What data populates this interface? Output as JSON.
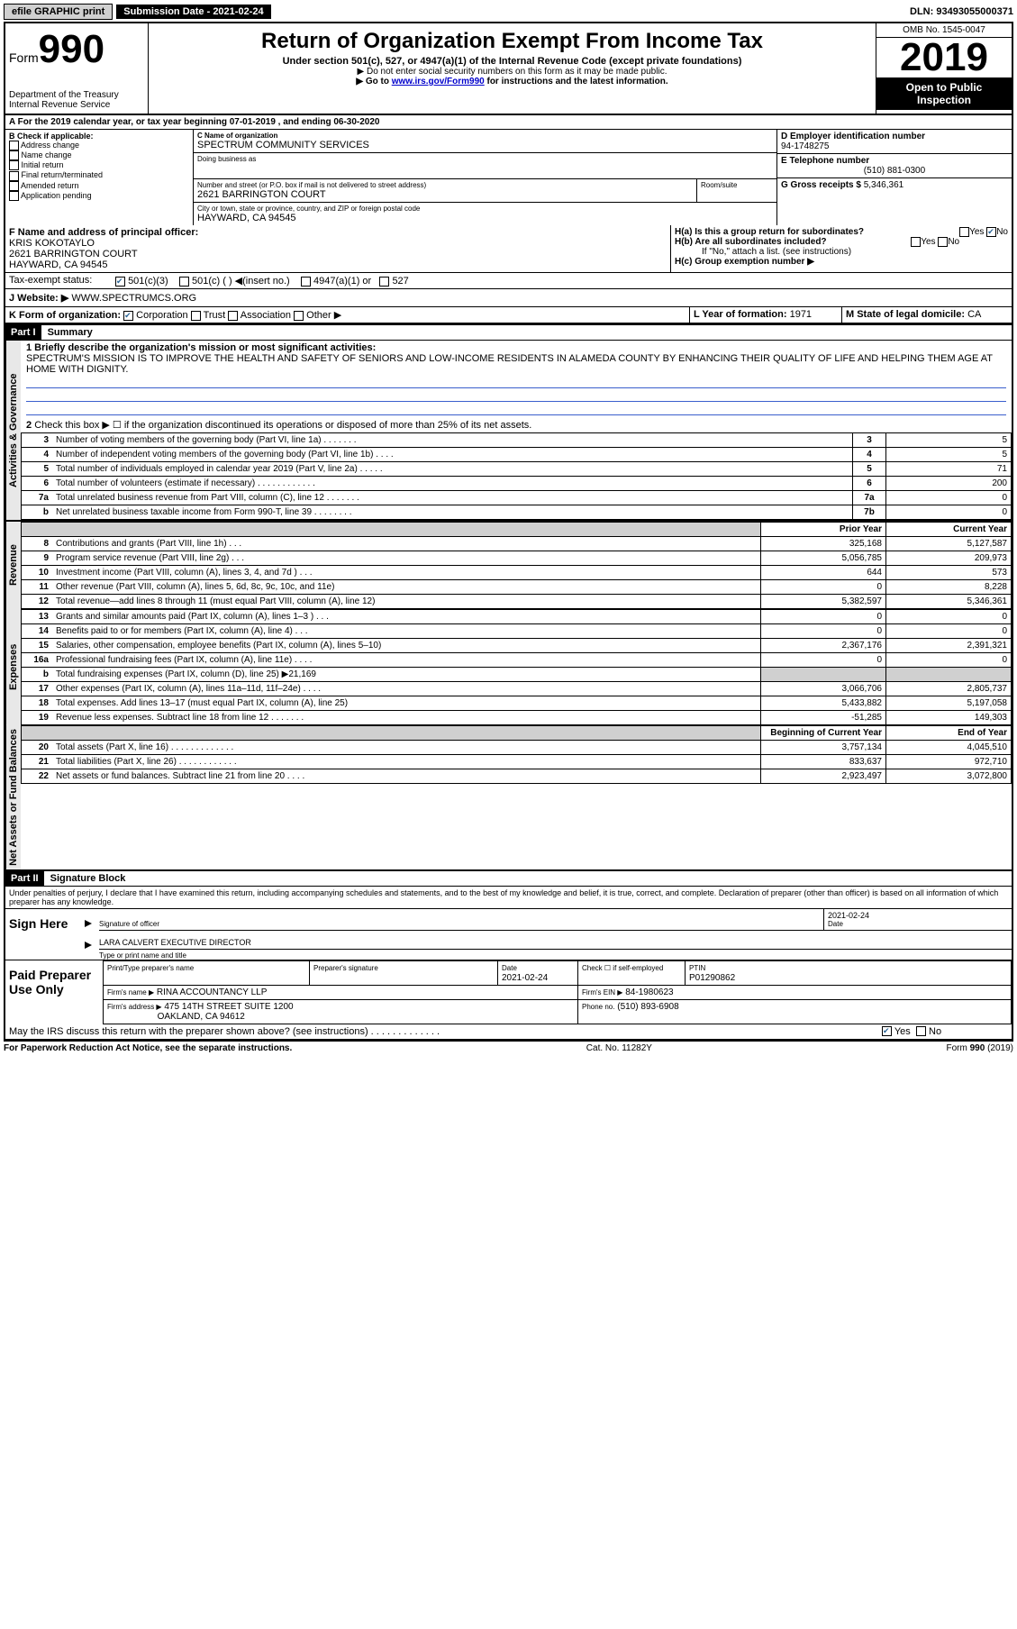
{
  "topbar": {
    "efile": "efile GRAPHIC print",
    "sub_label": "Submission Date - 2021-02-24",
    "dln": "DLN: 93493055000371"
  },
  "header": {
    "form_prefix": "Form",
    "form_num": "990",
    "dept": "Department of the Treasury\nInternal Revenue Service",
    "title": "Return of Organization Exempt From Income Tax",
    "subtitle": "Under section 501(c), 527, or 4947(a)(1) of the Internal Revenue Code (except private foundations)",
    "line1": "▶ Do not enter social security numbers on this form as it may be made public.",
    "line2_pre": "▶ Go to ",
    "line2_link": "www.irs.gov/Form990",
    "line2_post": " for instructions and the latest information.",
    "omb": "OMB No. 1545-0047",
    "year": "2019",
    "open": "Open to Public Inspection"
  },
  "a_line": "For the 2019 calendar year, or tax year beginning 07-01-2019    , and ending 06-30-2020",
  "b_checks": {
    "label": "B Check if applicable:",
    "items": [
      "Address change",
      "Name change",
      "Initial return",
      "Final return/terminated",
      "Amended return",
      "Application pending"
    ]
  },
  "c": {
    "name_label": "C Name of organization",
    "name": "SPECTRUM COMMUNITY SERVICES",
    "dba_label": "Doing business as",
    "addr_label": "Number and street (or P.O. box if mail is not delivered to street address)",
    "addr": "2621 BARRINGTON COURT",
    "room_label": "Room/suite",
    "city_label": "City or town, state or province, country, and ZIP or foreign postal code",
    "city": "HAYWARD, CA  94545"
  },
  "d": {
    "label": "D Employer identification number",
    "value": "94-1748275"
  },
  "e": {
    "label": "E Telephone number",
    "value": "(510) 881-0300"
  },
  "g": {
    "label": "G Gross receipts $",
    "value": "5,346,361"
  },
  "f": {
    "label": "F  Name and address of principal officer:",
    "name": "KRIS KOKOTAYLO",
    "addr": "2621 BARRINGTON COURT",
    "city": "HAYWARD, CA  94545"
  },
  "h": {
    "a": "H(a)  Is this a group return for subordinates?",
    "b": "H(b)  Are all subordinates included?",
    "note": "If \"No,\" attach a list. (see instructions)",
    "c": "H(c)  Group exemption number ▶"
  },
  "i": {
    "label": "Tax-exempt status:",
    "c3": "501(c)(3)",
    "cx": "501(c) (  ) ◀(insert no.)",
    "a1": "4947(a)(1) or",
    "s527": "527"
  },
  "j": {
    "label": "J   Website: ▶",
    "value": "WWW.SPECTRUMCS.ORG"
  },
  "k": {
    "label": "K Form of organization:",
    "corp": "Corporation",
    "trust": "Trust",
    "assoc": "Association",
    "other": "Other ▶"
  },
  "l": {
    "label": "L Year of formation:",
    "value": "1971"
  },
  "m": {
    "label": "M State of legal domicile:",
    "value": "CA"
  },
  "part1": {
    "tag": "Part I",
    "title": "Summary",
    "q1_label": "1   Briefly describe the organization's mission or most significant activities:",
    "mission": "SPECTRUM'S MISSION IS TO IMPROVE THE HEALTH AND SAFETY OF SENIORS AND LOW-INCOME RESIDENTS IN ALAMEDA COUNTY BY ENHANCING THEIR QUALITY OF LIFE AND HELPING THEM AGE AT HOME WITH DIGNITY.",
    "q2": "Check this box ▶ ☐ if the organization discontinued its operations or disposed of more than 25% of its net assets.",
    "section_labels": {
      "ag": "Activities & Governance",
      "rev": "Revenue",
      "exp": "Expenses",
      "na": "Net Assets or Fund Balances"
    },
    "col_py": "Prior Year",
    "col_cy": "Current Year",
    "col_bcy": "Beginning of Current Year",
    "col_eoy": "End of Year",
    "rows_ag": [
      {
        "n": "3",
        "t": "Number of voting members of the governing body (Part VI, line 1a)   .    .    .    .    .    .    .",
        "box": "3",
        "v": "5"
      },
      {
        "n": "4",
        "t": "Number of independent voting members of the governing body (Part VI, line 1b)   .    .    .    .",
        "box": "4",
        "v": "5"
      },
      {
        "n": "5",
        "t": "Total number of individuals employed in calendar year 2019 (Part V, line 2a)   .    .    .    .    .",
        "box": "5",
        "v": "71"
      },
      {
        "n": "6",
        "t": "Total number of volunteers (estimate if necessary)    .    .    .    .    .    .    .    .    .    .    .    .",
        "box": "6",
        "v": "200"
      },
      {
        "n": "7a",
        "t": "Total unrelated business revenue from Part VIII, column (C), line 12   .    .    .    .    .    .    .",
        "box": "7a",
        "v": "0"
      },
      {
        "n": "b",
        "t": "Net unrelated business taxable income from Form 990-T, line 39    .    .    .    .    .    .    .    .",
        "box": "7b",
        "v": "0"
      }
    ],
    "rows_rev": [
      {
        "n": "8",
        "t": "Contributions and grants (Part VIII, line 1h)    .    .    .",
        "py": "325,168",
        "cy": "5,127,587"
      },
      {
        "n": "9",
        "t": "Program service revenue (Part VIII, line 2g)    .    .    .",
        "py": "5,056,785",
        "cy": "209,973"
      },
      {
        "n": "10",
        "t": "Investment income (Part VIII, column (A), lines 3, 4, and 7d )    .    .    .",
        "py": "644",
        "cy": "573"
      },
      {
        "n": "11",
        "t": "Other revenue (Part VIII, column (A), lines 5, 6d, 8c, 9c, 10c, and 11e)",
        "py": "0",
        "cy": "8,228"
      },
      {
        "n": "12",
        "t": "Total revenue—add lines 8 through 11 (must equal Part VIII, column (A), line 12)",
        "py": "5,382,597",
        "cy": "5,346,361"
      }
    ],
    "rows_exp": [
      {
        "n": "13",
        "t": "Grants and similar amounts paid (Part IX, column (A), lines 1–3 )   .    .    .",
        "py": "0",
        "cy": "0"
      },
      {
        "n": "14",
        "t": "Benefits paid to or for members (Part IX, column (A), line 4)   .    .    .",
        "py": "0",
        "cy": "0"
      },
      {
        "n": "15",
        "t": "Salaries, other compensation, employee benefits (Part IX, column (A), lines 5–10)",
        "py": "2,367,176",
        "cy": "2,391,321"
      },
      {
        "n": "16a",
        "t": "Professional fundraising fees (Part IX, column (A), line 11e)   .    .    .    .",
        "py": "0",
        "cy": "0"
      },
      {
        "n": "b",
        "t": "Total fundraising expenses (Part IX, column (D), line 25) ▶21,169",
        "py": "",
        "cy": "",
        "shaded": true
      },
      {
        "n": "17",
        "t": "Other expenses (Part IX, column (A), lines 11a–11d, 11f–24e)    .    .    .    .",
        "py": "3,066,706",
        "cy": "2,805,737"
      },
      {
        "n": "18",
        "t": "Total expenses. Add lines 13–17 (must equal Part IX, column (A), line 25)",
        "py": "5,433,882",
        "cy": "5,197,058"
      },
      {
        "n": "19",
        "t": "Revenue less expenses. Subtract line 18 from line 12   .    .    .    .    .    .    .",
        "py": "-51,285",
        "cy": "149,303"
      }
    ],
    "rows_na": [
      {
        "n": "20",
        "t": "Total assets (Part X, line 16)   .    .    .    .    .    .    .    .    .    .    .    .    .",
        "py": "3,757,134",
        "cy": "4,045,510"
      },
      {
        "n": "21",
        "t": "Total liabilities (Part X, line 26)   .    .    .    .    .    .    .    .    .    .    .    .",
        "py": "833,637",
        "cy": "972,710"
      },
      {
        "n": "22",
        "t": "Net assets or fund balances. Subtract line 21 from line 20    .    .    .    .",
        "py": "2,923,497",
        "cy": "3,072,800"
      }
    ]
  },
  "part2": {
    "tag": "Part II",
    "title": "Signature Block",
    "decl": "Under penalties of perjury, I declare that I have examined this return, including accompanying schedules and statements, and to the best of my knowledge and belief, it is true, correct, and complete. Declaration of preparer (other than officer) is based on all information of which preparer has any knowledge.",
    "sign_here": "Sign Here",
    "sig_officer": "Signature of officer",
    "sig_date": "2021-02-24",
    "date_label": "Date",
    "officer_name": "LARA CALVERT  EXECUTIVE DIRECTOR",
    "type_name": "Type or print name and title",
    "paid": "Paid Preparer Use Only",
    "prep_name_label": "Print/Type preparer's name",
    "prep_sig_label": "Preparer's signature",
    "prep_date": "2021-02-24",
    "check_self": "Check ☐ if self-employed",
    "ptin_label": "PTIN",
    "ptin": "P01290862",
    "firm_name_label": "Firm's name    ▶",
    "firm_name": "RINA ACCOUNTANCY LLP",
    "firm_ein_label": "Firm's EIN ▶",
    "firm_ein": "84-1980623",
    "firm_addr_label": "Firm's address ▶",
    "firm_addr": "475 14TH STREET SUITE 1200",
    "firm_city": "OAKLAND, CA  94612",
    "phone_label": "Phone no.",
    "phone": "(510) 893-6908",
    "discuss": "May the IRS discuss this return with the preparer shown above? (see instructions)    .    .    .    .    .    .    .    .    .    .    .    .    .",
    "yes": "Yes",
    "no": "No"
  },
  "footer": {
    "pra": "For Paperwork Reduction Act Notice, see the separate instructions.",
    "cat": "Cat. No. 11282Y",
    "form": "Form 990 (2019)"
  }
}
